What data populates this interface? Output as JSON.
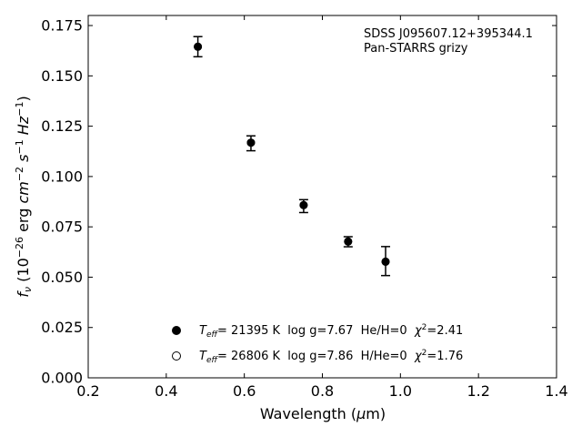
{
  "chart_data": {
    "type": "scatter",
    "title": "",
    "xlabel": {
      "main": "Wavelength (",
      "mu": "μ",
      "unit": "m)"
    },
    "ylabel": {
      "f": "f",
      "nu": "ν",
      "open": "(10",
      "e1": "−26",
      "erg": " erg ",
      "cm": "cm",
      "e2": "−2",
      "s": "s",
      "e3": "−1",
      "hz": "Hz",
      "e4": "−1",
      "close": ")"
    },
    "xlim": [
      0.2,
      1.4
    ],
    "ylim": [
      0.0,
      0.18
    ],
    "xticks": [
      "0.2",
      "0.4",
      "0.6",
      "0.8",
      "1.0",
      "1.2",
      "1.4"
    ],
    "yticks": [
      "0.000",
      "0.025",
      "0.050",
      "0.075",
      "0.100",
      "0.125",
      "0.150",
      "0.175"
    ],
    "grid": false,
    "annotations": [
      "SDSS J095607.12+395344.1",
      "Pan-STARRS grizy"
    ],
    "series": [
      {
        "name": "observed",
        "marker": "errorbar",
        "x": [
          0.481,
          0.617,
          0.752,
          0.866,
          0.962
        ],
        "y": [
          0.1645,
          0.1165,
          0.0853,
          0.0676,
          0.058
        ],
        "err": [
          0.005,
          0.0037,
          0.0032,
          0.0025,
          0.0072
        ]
      },
      {
        "name": "He model",
        "marker": "filled-circle",
        "x": [
          0.481,
          0.617,
          0.752,
          0.866,
          0.962
        ],
        "y": [
          0.1645,
          0.1168,
          0.0858,
          0.0677,
          0.0577
        ]
      },
      {
        "name": "H model",
        "marker": "open-circle",
        "x": [
          0.481,
          0.617,
          0.752,
          0.866,
          0.962
        ],
        "y": [
          0.1645,
          0.1168,
          0.0858,
          0.0677,
          0.0577
        ]
      }
    ],
    "legend": {
      "placement": "lower-center",
      "entries": [
        {
          "marker": "filled",
          "t": "T",
          "sub": "eff",
          "rest1": "= 21395 K  log g=7.67  He/H=0  ",
          "chi": "χ",
          "sup": "2",
          "rest2": "=2.41"
        },
        {
          "marker": "open",
          "t": "T",
          "sub": "eff",
          "rest1": "= 26806 K  log g=7.86  H/He=0  ",
          "chi": "χ",
          "sup": "2",
          "rest2": "=1.76"
        }
      ]
    },
    "colors": {
      "marker": "#000000",
      "axis": "#000000",
      "background": "#ffffff"
    }
  }
}
